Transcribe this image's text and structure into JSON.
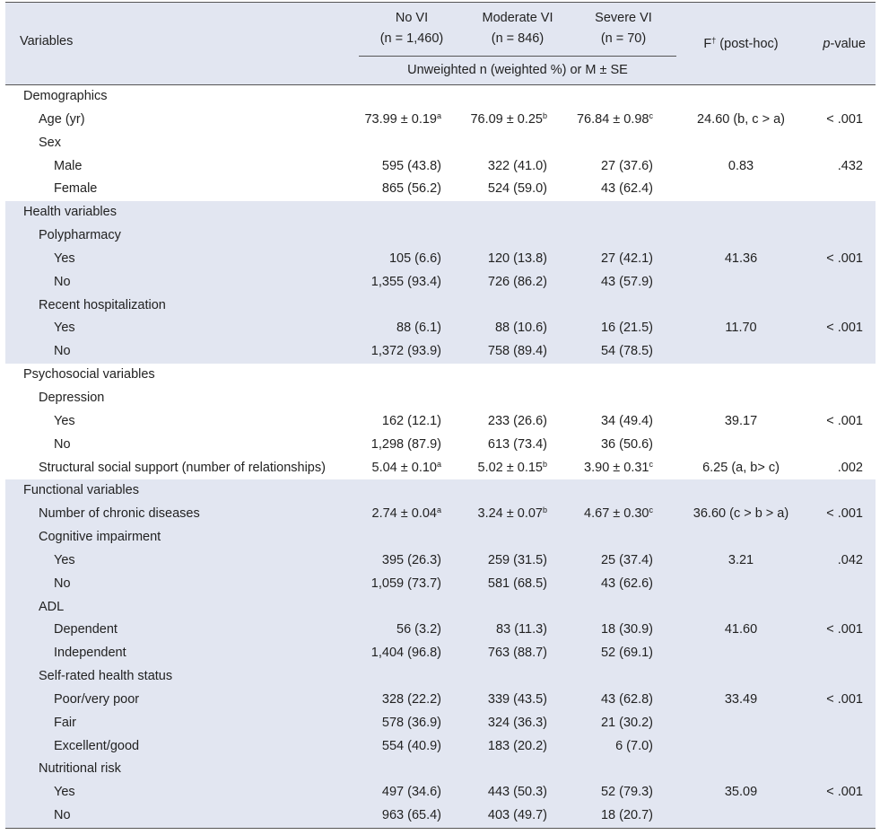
{
  "header": {
    "variables": "Variables",
    "groups": [
      {
        "name": "No VI",
        "n": "(n = 1,460)"
      },
      {
        "name": "Moderate VI",
        "n": "(n = 846)"
      },
      {
        "name": "Severe VI",
        "n": "(n = 70)"
      }
    ],
    "f_label": "F",
    "f_sup": "†",
    "f_suffix": " (post-hoc)",
    "p_label_italic": "p",
    "p_label_rest": "-value",
    "subheader": "Unweighted n (weighted %) or M ± SE"
  },
  "rows": [
    {
      "label": "Demographics",
      "level": 0,
      "shade": false,
      "sep": false,
      "novi": "",
      "novi_sup": "",
      "mod": "",
      "mod_sup": "",
      "sev": "",
      "sev_sup": "",
      "f": "",
      "p": ""
    },
    {
      "label": "Age (yr)",
      "level": 1,
      "shade": false,
      "sep": false,
      "novi": "73.99 ± 0.19",
      "novi_sup": "a",
      "mod": "76.09 ± 0.25",
      "mod_sup": "b",
      "sev": "76.84 ± 0.98",
      "sev_sup": "c",
      "f": "24.60 (b, c > a)",
      "p": "< .001"
    },
    {
      "label": "Sex",
      "level": 1,
      "shade": false,
      "sep": false,
      "novi": "",
      "novi_sup": "",
      "mod": "",
      "mod_sup": "",
      "sev": "",
      "sev_sup": "",
      "f": "",
      "p": ""
    },
    {
      "label": "Male",
      "level": 2,
      "shade": false,
      "sep": false,
      "novi": "595 (43.8)",
      "novi_sup": "",
      "mod": "322 (41.0)",
      "mod_sup": "",
      "sev": "27 (37.6)",
      "sev_sup": "",
      "f": "0.83",
      "p": ".432"
    },
    {
      "label": "Female",
      "level": 2,
      "shade": false,
      "sep": false,
      "novi": "865 (56.2)",
      "novi_sup": "",
      "mod": "524 (59.0)",
      "mod_sup": "",
      "sev": "43 (62.4)",
      "sev_sup": "",
      "f": "",
      "p": ""
    },
    {
      "label": "Health variables",
      "level": 0,
      "shade": true,
      "sep": false,
      "novi": "",
      "novi_sup": "",
      "mod": "",
      "mod_sup": "",
      "sev": "",
      "sev_sup": "",
      "f": "",
      "p": ""
    },
    {
      "label": "Polypharmacy",
      "level": 1,
      "shade": true,
      "sep": false,
      "novi": "",
      "novi_sup": "",
      "mod": "",
      "mod_sup": "",
      "sev": "",
      "sev_sup": "",
      "f": "",
      "p": ""
    },
    {
      "label": "Yes",
      "level": 2,
      "shade": true,
      "sep": false,
      "novi": "105 (6.6)",
      "novi_sup": "",
      "mod": "120 (13.8)",
      "mod_sup": "",
      "sev": "27 (42.1)",
      "sev_sup": "",
      "f": "41.36",
      "p": "< .001"
    },
    {
      "label": "No",
      "level": 2,
      "shade": true,
      "sep": false,
      "novi": "1,355 (93.4)",
      "novi_sup": "",
      "mod": "726 (86.2)",
      "mod_sup": "",
      "sev": "43 (57.9)",
      "sev_sup": "",
      "f": "",
      "p": ""
    },
    {
      "label": "Recent hospitalization",
      "level": 1,
      "shade": true,
      "sep": false,
      "novi": "",
      "novi_sup": "",
      "mod": "",
      "mod_sup": "",
      "sev": "",
      "sev_sup": "",
      "f": "",
      "p": ""
    },
    {
      "label": "Yes",
      "level": 2,
      "shade": true,
      "sep": false,
      "novi": "88 (6.1)",
      "novi_sup": "",
      "mod": "88 (10.6)",
      "mod_sup": "",
      "sev": "16 (21.5)",
      "sev_sup": "",
      "f": "11.70",
      "p": "< .001"
    },
    {
      "label": "No",
      "level": 2,
      "shade": true,
      "sep": false,
      "novi": "1,372 (93.9)",
      "novi_sup": "",
      "mod": "758 (89.4)",
      "mod_sup": "",
      "sev": "54 (78.5)",
      "sev_sup": "",
      "f": "",
      "p": ""
    },
    {
      "label": "Psychosocial variables",
      "level": 0,
      "shade": false,
      "sep": false,
      "novi": "",
      "novi_sup": "",
      "mod": "",
      "mod_sup": "",
      "sev": "",
      "sev_sup": "",
      "f": "",
      "p": ""
    },
    {
      "label": "Depression",
      "level": 1,
      "shade": false,
      "sep": false,
      "novi": "",
      "novi_sup": "",
      "mod": "",
      "mod_sup": "",
      "sev": "",
      "sev_sup": "",
      "f": "",
      "p": ""
    },
    {
      "label": "Yes",
      "level": 2,
      "shade": false,
      "sep": false,
      "novi": "162 (12.1)",
      "novi_sup": "",
      "mod": "233 (26.6)",
      "mod_sup": "",
      "sev": "34 (49.4)",
      "sev_sup": "",
      "f": "39.17",
      "p": "< .001"
    },
    {
      "label": "No",
      "level": 2,
      "shade": false,
      "sep": false,
      "novi": "1,298 (87.9)",
      "novi_sup": "",
      "mod": "613 (73.4)",
      "mod_sup": "",
      "sev": "36 (50.6)",
      "sev_sup": "",
      "f": "",
      "p": ""
    },
    {
      "label": "Structural social support (number of relationships)",
      "level": 1,
      "shade": false,
      "sep": false,
      "novi": "5.04 ± 0.10",
      "novi_sup": "a",
      "mod": "5.02 ± 0.15",
      "mod_sup": "b",
      "sev": "3.90 ± 0.31",
      "sev_sup": "c",
      "f": "6.25 (a, b> c)",
      "p": ".002"
    },
    {
      "label": "Functional variables",
      "level": 0,
      "shade": true,
      "sep": false,
      "novi": "",
      "novi_sup": "",
      "mod": "",
      "mod_sup": "",
      "sev": "",
      "sev_sup": "",
      "f": "",
      "p": ""
    },
    {
      "label": "Number of chronic diseases",
      "level": 1,
      "shade": true,
      "sep": false,
      "novi": "2.74 ± 0.04",
      "novi_sup": "a",
      "mod": "3.24 ± 0.07",
      "mod_sup": "b",
      "sev": "4.67 ± 0.30",
      "sev_sup": "c",
      "f": "36.60 (c > b > a)",
      "p": "< .001"
    },
    {
      "label": "Cognitive impairment",
      "level": 1,
      "shade": true,
      "sep": false,
      "novi": "",
      "novi_sup": "",
      "mod": "",
      "mod_sup": "",
      "sev": "",
      "sev_sup": "",
      "f": "",
      "p": ""
    },
    {
      "label": "Yes",
      "level": 2,
      "shade": true,
      "sep": false,
      "novi": "395 (26.3)",
      "novi_sup": "",
      "mod": "259 (31.5)",
      "mod_sup": "",
      "sev": "25 (37.4)",
      "sev_sup": "",
      "f": "3.21",
      "p": ".042"
    },
    {
      "label": "No",
      "level": 2,
      "shade": true,
      "sep": false,
      "novi": "1,059 (73.7)",
      "novi_sup": "",
      "mod": "581 (68.5)",
      "mod_sup": "",
      "sev": "43 (62.6)",
      "sev_sup": "",
      "f": "",
      "p": ""
    },
    {
      "label": "ADL",
      "level": 1,
      "shade": true,
      "sep": false,
      "novi": "",
      "novi_sup": "",
      "mod": "",
      "mod_sup": "",
      "sev": "",
      "sev_sup": "",
      "f": "",
      "p": ""
    },
    {
      "label": "Dependent",
      "level": 2,
      "shade": true,
      "sep": false,
      "novi": "56 (3.2)",
      "novi_sup": "",
      "mod": "83 (11.3)",
      "mod_sup": "",
      "sev": "18 (30.9)",
      "sev_sup": "",
      "f": "41.60",
      "p": "< .001"
    },
    {
      "label": "Independent",
      "level": 2,
      "shade": true,
      "sep": false,
      "novi": "1,404 (96.8)",
      "novi_sup": "",
      "mod": "763 (88.7)",
      "mod_sup": "",
      "sev": "52 (69.1)",
      "sev_sup": "",
      "f": "",
      "p": ""
    },
    {
      "label": "Self-rated health status",
      "level": 1,
      "shade": true,
      "sep": false,
      "novi": "",
      "novi_sup": "",
      "mod": "",
      "mod_sup": "",
      "sev": "",
      "sev_sup": "",
      "f": "",
      "p": ""
    },
    {
      "label": "Poor/very poor",
      "level": 2,
      "shade": true,
      "sep": false,
      "novi": "328 (22.2)",
      "novi_sup": "",
      "mod": "339 (43.5)",
      "mod_sup": "",
      "sev": "43 (62.8)",
      "sev_sup": "",
      "f": "33.49",
      "p": "< .001"
    },
    {
      "label": "Fair",
      "level": 2,
      "shade": true,
      "sep": false,
      "novi": "578 (36.9)",
      "novi_sup": "",
      "mod": "324 (36.3)",
      "mod_sup": "",
      "sev": "21 (30.2)",
      "sev_sup": "",
      "f": "",
      "p": ""
    },
    {
      "label": "Excellent/good",
      "level": 2,
      "shade": true,
      "sep": false,
      "novi": "554 (40.9)",
      "novi_sup": "",
      "mod": "183 (20.2)",
      "mod_sup": "",
      "sev": "6 (7.0)",
      "sev_sup": "",
      "f": "",
      "p": ""
    },
    {
      "label": "Nutritional risk",
      "level": 1,
      "shade": true,
      "sep": false,
      "novi": "",
      "novi_sup": "",
      "mod": "",
      "mod_sup": "",
      "sev": "",
      "sev_sup": "",
      "f": "",
      "p": ""
    },
    {
      "label": "Yes",
      "level": 2,
      "shade": true,
      "sep": false,
      "novi": "497 (34.6)",
      "novi_sup": "",
      "mod": "443 (50.3)",
      "mod_sup": "",
      "sev": "52 (79.3)",
      "sev_sup": "",
      "f": "35.09",
      "p": "< .001"
    },
    {
      "label": "No",
      "level": 2,
      "shade": true,
      "sep": false,
      "novi": "963 (65.4)",
      "novi_sup": "",
      "mod": "403 (49.7)",
      "mod_sup": "",
      "sev": "18 (20.7)",
      "sev_sup": "",
      "f": "",
      "p": ""
    }
  ]
}
